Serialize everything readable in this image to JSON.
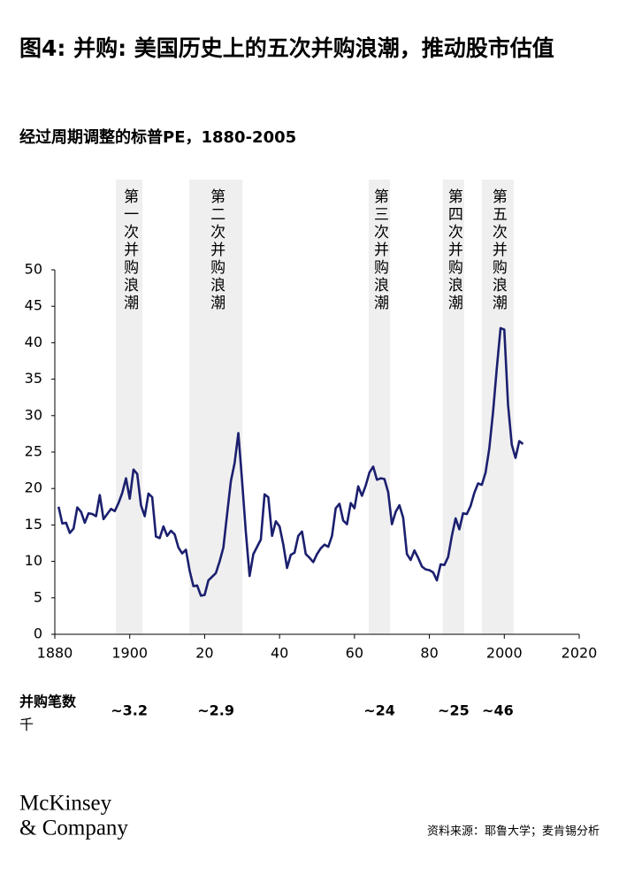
{
  "chart_data": {
    "type": "line",
    "title": "图4: 并购: 美国历史上的五次并购浪潮，推动股市估值",
    "subtitle": "经过周期调整的标普PE，1880-2005",
    "x": [
      1881,
      1882,
      1883,
      1884,
      1885,
      1886,
      1887,
      1888,
      1889,
      1890,
      1891,
      1892,
      1893,
      1894,
      1895,
      1896,
      1897,
      1898,
      1899,
      1900,
      1901,
      1902,
      1903,
      1904,
      1905,
      1906,
      1907,
      1908,
      1909,
      1910,
      1911,
      1912,
      1913,
      1914,
      1915,
      1916,
      1917,
      1918,
      1919,
      1920,
      1921,
      1922,
      1923,
      1924,
      1925,
      1926,
      1927,
      1928,
      1929,
      1930,
      1931,
      1932,
      1933,
      1934,
      1935,
      1936,
      1937,
      1938,
      1939,
      1940,
      1941,
      1942,
      1943,
      1944,
      1945,
      1946,
      1947,
      1948,
      1949,
      1950,
      1951,
      1952,
      1953,
      1954,
      1955,
      1956,
      1957,
      1958,
      1959,
      1960,
      1961,
      1962,
      1963,
      1964,
      1965,
      1966,
      1967,
      1968,
      1969,
      1970,
      1971,
      1972,
      1973,
      1974,
      1975,
      1976,
      1977,
      1978,
      1979,
      1980,
      1981,
      1982,
      1983,
      1984,
      1985,
      1986,
      1987,
      1988,
      1989,
      1990,
      1991,
      1992,
      1993,
      1994,
      1995,
      1996,
      1997,
      1998,
      1999,
      2000,
      2001,
      2002,
      2003,
      2004,
      2005
    ],
    "series": [
      {
        "color": "#1b1f6e",
        "values": [
          17.5,
          15.2,
          15.3,
          13.9,
          14.5,
          17.4,
          16.8,
          15.3,
          16.6,
          16.5,
          16.2,
          19.1,
          15.8,
          16.5,
          17.2,
          16.9,
          18.0,
          19.4,
          21.4,
          18.6,
          22.6,
          22.0,
          17.7,
          16.2,
          19.3,
          18.8,
          13.4,
          13.2,
          14.8,
          13.5,
          14.2,
          13.7,
          11.9,
          11.1,
          11.6,
          8.7,
          6.6,
          6.7,
          5.3,
          5.4,
          7.4,
          7.9,
          8.4,
          10.0,
          11.9,
          16.5,
          21.0,
          23.5,
          27.6,
          21.0,
          14.0,
          8.0,
          11.0,
          12.0,
          13.0,
          19.2,
          18.8,
          13.5,
          15.5,
          14.8,
          12.3,
          9.1,
          10.9,
          11.2,
          13.5,
          14.1,
          11.0,
          10.5,
          9.9,
          11.0,
          11.8,
          12.3,
          12.0,
          13.5,
          17.3,
          17.9,
          15.6,
          15.1,
          18.0,
          17.3,
          20.3,
          19.0,
          20.4,
          22.2,
          23.0,
          21.2,
          21.4,
          21.3,
          19.5,
          15.1,
          16.8,
          17.7,
          16.0,
          11.0,
          10.2,
          11.5,
          10.5,
          9.3,
          8.9,
          8.8,
          8.5,
          7.4,
          9.6,
          9.5,
          10.6,
          13.5,
          15.9,
          14.4,
          16.6,
          16.5,
          17.6,
          19.4,
          20.7,
          20.5,
          22.2,
          25.5,
          30.5,
          36.5,
          42.0,
          41.8,
          31.5,
          26.0,
          24.2,
          26.5,
          26.1
        ]
      }
    ],
    "xlim": [
      1880,
      2020
    ],
    "xticks": [
      1880,
      1900,
      {
        "value": 1920,
        "label": "20"
      },
      {
        "value": 1940,
        "label": "40"
      },
      {
        "value": 1960,
        "label": "60"
      },
      {
        "value": 1980,
        "label": "80"
      },
      2000,
      2020
    ],
    "ylim": [
      0,
      50
    ],
    "yticks": [
      0,
      5,
      10,
      15,
      20,
      25,
      30,
      35,
      40,
      45,
      50
    ],
    "band_color": "#efefef",
    "waves": [
      {
        "label": "第一次并购浪潮",
        "start": 1896.3,
        "end": 1903.4,
        "deals": "~3.2"
      },
      {
        "label": "第二次并购浪潮",
        "start": 1915.9,
        "end": 1930.1,
        "deals": "~2.9"
      },
      {
        "label": "第三次并购浪潮",
        "start": 1963.8,
        "end": 1969.5,
        "deals": "~24"
      },
      {
        "label": "第四次并购浪潮",
        "start": 1983.6,
        "end": 1989.3,
        "deals": "~25"
      },
      {
        "label": "第五次并购浪潮",
        "start": 1994.0,
        "end": 2002.5,
        "deals": "~46"
      }
    ],
    "deals_label": "并购笔数",
    "deals_unit": "千"
  },
  "footer": {
    "brand": [
      "McKinsey",
      "& Company"
    ],
    "source": "资料来源：耶鲁大学；麦肯锡分析"
  }
}
